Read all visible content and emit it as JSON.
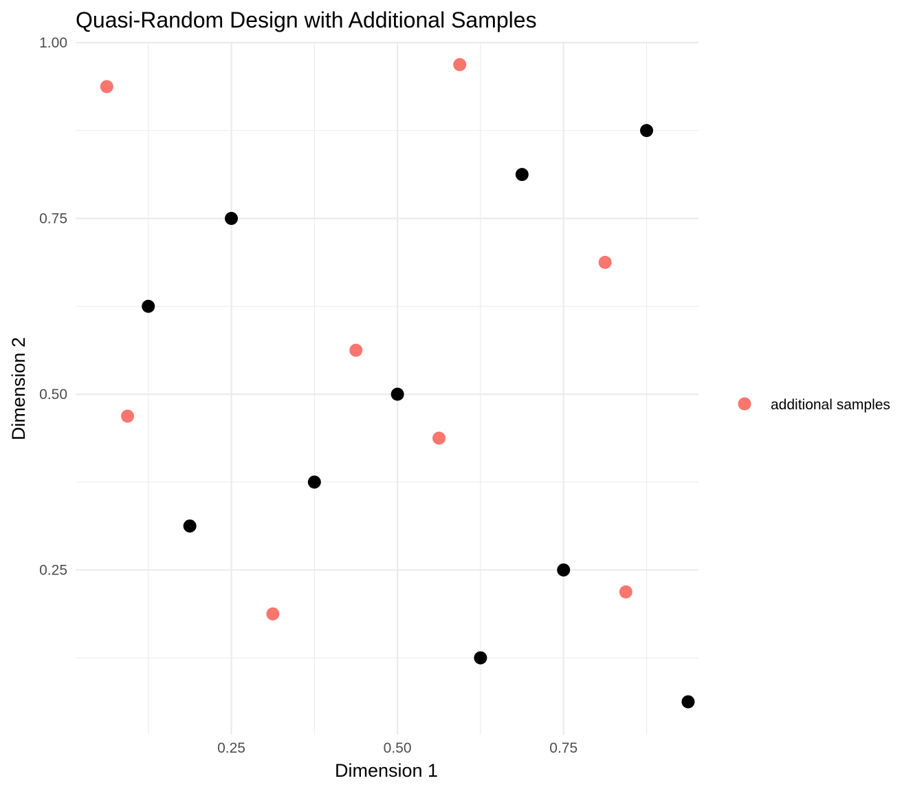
{
  "chart_data": {
    "type": "scatter",
    "title": "Quasi-Random Design with Additional Samples",
    "xlabel": "Dimension 1",
    "ylabel": "Dimension 2",
    "xlim": [
      0.0156,
      0.9531
    ],
    "ylim": [
      0.0156,
      1.0
    ],
    "x_ticks": [
      0.25,
      0.5,
      0.75
    ],
    "x_tick_labels": [
      "0.25",
      "0.50",
      "0.75"
    ],
    "y_ticks": [
      0.25,
      0.5,
      0.75,
      1.0
    ],
    "y_tick_labels": [
      "0.25",
      "0.50",
      "0.75",
      "1.00"
    ],
    "x_minor_ticks": [
      0.125,
      0.375,
      0.625,
      0.875
    ],
    "y_minor_ticks": [
      0.125,
      0.375,
      0.625,
      0.875
    ],
    "grid": true,
    "legend_position": "right",
    "series": [
      {
        "color": "#000000",
        "points": [
          {
            "x": 0.5,
            "y": 0.5
          },
          {
            "x": 0.25,
            "y": 0.75
          },
          {
            "x": 0.75,
            "y": 0.25
          },
          {
            "x": 0.125,
            "y": 0.625
          },
          {
            "x": 0.625,
            "y": 0.125
          },
          {
            "x": 0.375,
            "y": 0.375
          },
          {
            "x": 0.875,
            "y": 0.875
          },
          {
            "x": 0.1875,
            "y": 0.3125
          },
          {
            "x": 0.6875,
            "y": 0.8125
          },
          {
            "x": 0.9375,
            "y": 0.0625
          }
        ]
      },
      {
        "name": "additional samples",
        "color": "#f8766d",
        "points": [
          {
            "x": 0.4375,
            "y": 0.5625
          },
          {
            "x": 0.3125,
            "y": 0.1875
          },
          {
            "x": 0.8125,
            "y": 0.6875
          },
          {
            "x": 0.5625,
            "y": 0.4375
          },
          {
            "x": 0.0625,
            "y": 0.9375
          },
          {
            "x": 0.59375,
            "y": 0.96875
          },
          {
            "x": 0.84375,
            "y": 0.21875
          },
          {
            "x": 0.09375,
            "y": 0.46875
          }
        ]
      }
    ],
    "legend": [
      {
        "label": "additional samples",
        "color": "#f8766d"
      }
    ]
  }
}
